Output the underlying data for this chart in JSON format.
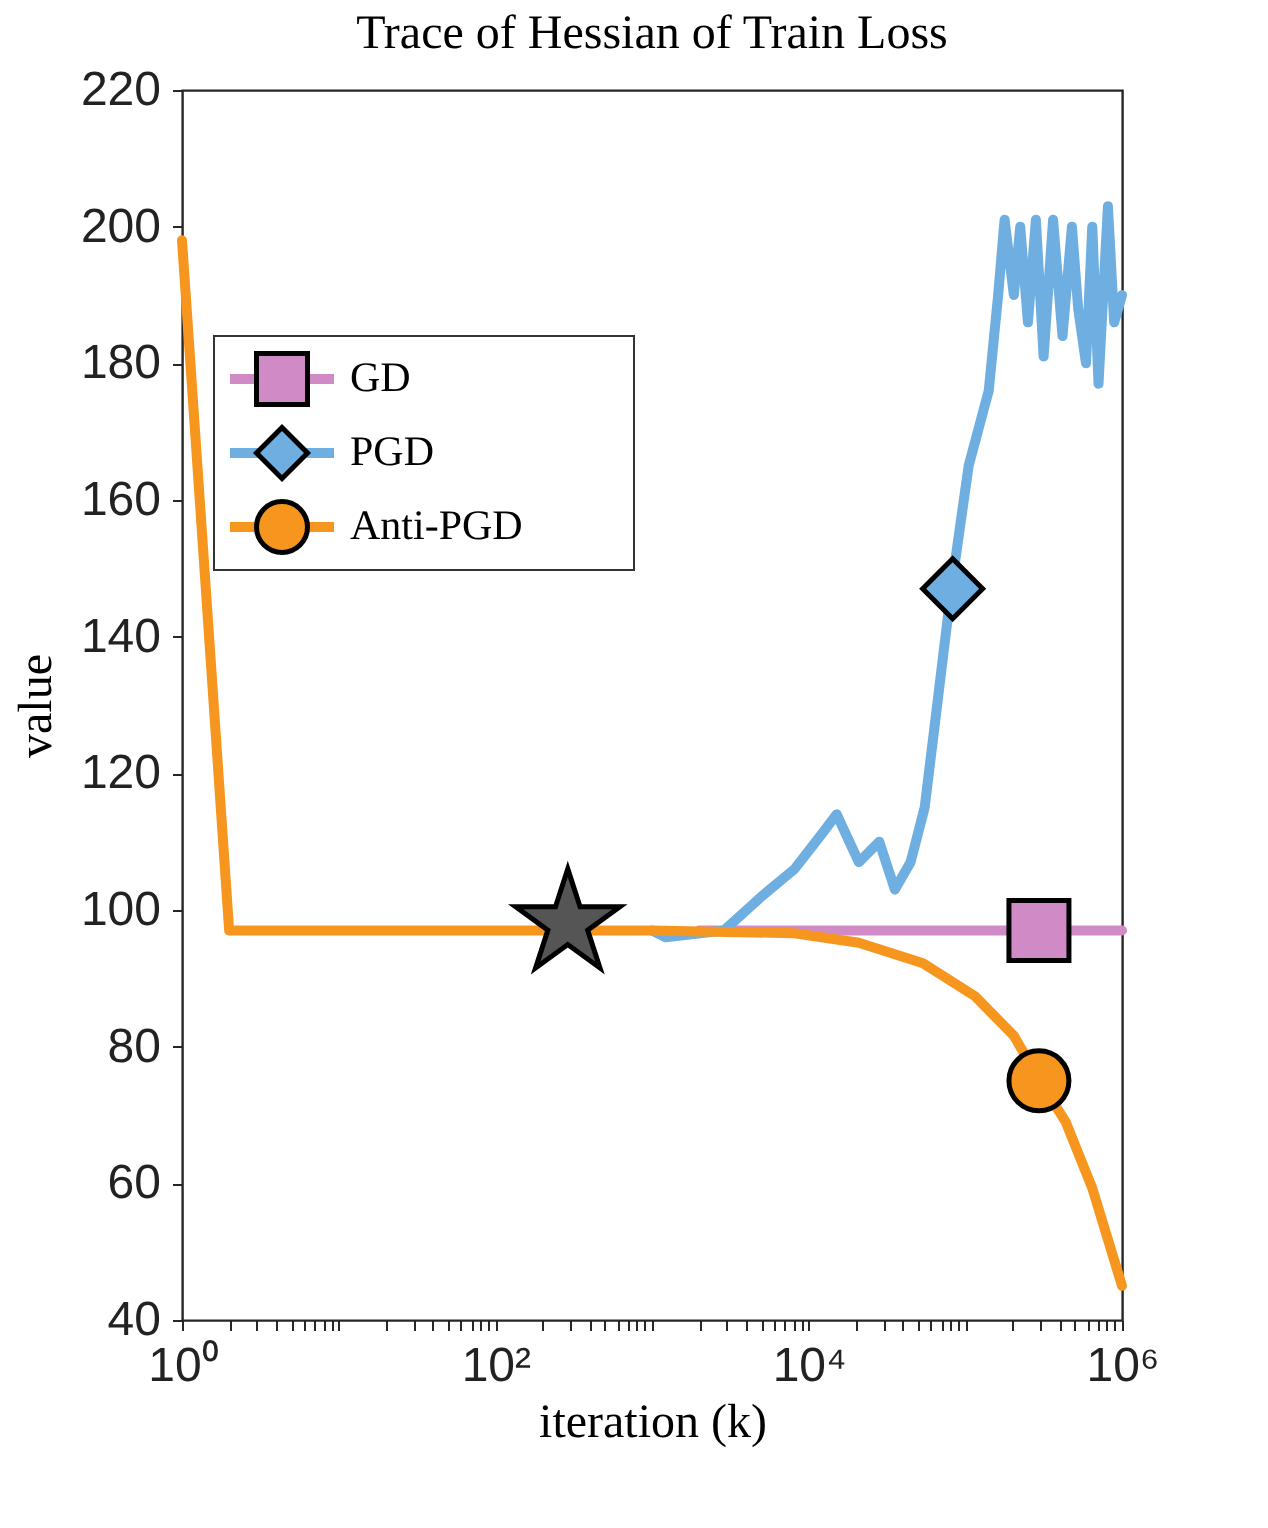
{
  "chart_data": {
    "type": "line",
    "title": "Trace of Hessian of Train Loss",
    "xlabel": "iteration (k)",
    "ylabel": "value",
    "log": "x",
    "xlim": [
      1,
      1000000
    ],
    "ylim": [
      40,
      220
    ],
    "xticks": [
      {
        "value": 1,
        "label": "10⁰"
      },
      {
        "value": 2,
        "label": null
      },
      {
        "value": 3,
        "label": null
      },
      {
        "value": 4,
        "label": null
      },
      {
        "value": 5,
        "label": null
      },
      {
        "value": 6,
        "label": null
      },
      {
        "value": 7,
        "label": null
      },
      {
        "value": 8,
        "label": null
      },
      {
        "value": 9,
        "label": null
      },
      {
        "value": 10,
        "label": null
      },
      {
        "value": 20,
        "label": null
      },
      {
        "value": 30,
        "label": null
      },
      {
        "value": 40,
        "label": null
      },
      {
        "value": 50,
        "label": null
      },
      {
        "value": 60,
        "label": null
      },
      {
        "value": 70,
        "label": null
      },
      {
        "value": 80,
        "label": null
      },
      {
        "value": 90,
        "label": null
      },
      {
        "value": 100,
        "label": "10²"
      },
      {
        "value": 200,
        "label": null
      },
      {
        "value": 300,
        "label": null
      },
      {
        "value": 400,
        "label": null
      },
      {
        "value": 500,
        "label": null
      },
      {
        "value": 600,
        "label": null
      },
      {
        "value": 700,
        "label": null
      },
      {
        "value": 800,
        "label": null
      },
      {
        "value": 900,
        "label": null
      },
      {
        "value": 1000,
        "label": null
      },
      {
        "value": 2000,
        "label": null
      },
      {
        "value": 3000,
        "label": null
      },
      {
        "value": 4000,
        "label": null
      },
      {
        "value": 5000,
        "label": null
      },
      {
        "value": 6000,
        "label": null
      },
      {
        "value": 7000,
        "label": null
      },
      {
        "value": 8000,
        "label": null
      },
      {
        "value": 9000,
        "label": null
      },
      {
        "value": 10000,
        "label": "10⁴"
      },
      {
        "value": 20000,
        "label": null
      },
      {
        "value": 30000,
        "label": null
      },
      {
        "value": 40000,
        "label": null
      },
      {
        "value": 50000,
        "label": null
      },
      {
        "value": 60000,
        "label": null
      },
      {
        "value": 70000,
        "label": null
      },
      {
        "value": 80000,
        "label": null
      },
      {
        "value": 90000,
        "label": null
      },
      {
        "value": 100000,
        "label": null
      },
      {
        "value": 200000,
        "label": null
      },
      {
        "value": 300000,
        "label": null
      },
      {
        "value": 400000,
        "label": null
      },
      {
        "value": 500000,
        "label": null
      },
      {
        "value": 600000,
        "label": null
      },
      {
        "value": 700000,
        "label": null
      },
      {
        "value": 800000,
        "label": null
      },
      {
        "value": 900000,
        "label": null
      },
      {
        "value": 1000000,
        "label": "10⁶"
      }
    ],
    "yticks": [
      40,
      60,
      80,
      100,
      120,
      140,
      160,
      180,
      200,
      220
    ],
    "grid": false,
    "legend": "left",
    "line_style": "solid",
    "series": [
      {
        "name": "GD",
        "color": "#d08bc6",
        "x": [
          2000,
          1000000
        ],
        "values": [
          97,
          97
        ]
      },
      {
        "name": "PGD",
        "color": "#6faee0",
        "x": [
          1000,
          1220,
          2880,
          5010,
          8130,
          12000,
          15100,
          20900,
          28200,
          35500,
          44700,
          55000,
          66100,
          81300,
          105000,
          141000,
          162000,
          178000,
          204000,
          224000,
          251000,
          282000,
          316000,
          363000,
          417000,
          479000,
          525000,
          589000,
          646000,
          708000,
          813000,
          891000,
          1000000
        ],
        "values": [
          97,
          96,
          97,
          102,
          106,
          111,
          114,
          107,
          110,
          103,
          107,
          115,
          130,
          147,
          165,
          176,
          190,
          201,
          190,
          200,
          186,
          201,
          181,
          201,
          184,
          200,
          188,
          180,
          200,
          177,
          203,
          186,
          190
        ]
      },
      {
        "name": "Anti-PGD",
        "color": "#f7961f",
        "x": [
          1,
          2,
          1000,
          8130,
          20900,
          53700,
          115000,
          204000,
          295000,
          437000,
          646000,
          1000000
        ],
        "values": [
          198,
          97,
          97,
          96.6,
          95.2,
          92.2,
          87.4,
          81.6,
          75.2,
          69,
          59.3,
          45
        ]
      },
      {
        "type": "scatter",
        "color": "#d08bc6",
        "marker": "square",
        "x": [
          295000
        ],
        "values": [
          97
        ]
      },
      {
        "type": "scatter",
        "color": "#6faee0",
        "marker": "diamond",
        "x": [
          83000
        ],
        "values": [
          147
        ]
      },
      {
        "type": "scatter",
        "color": "#f7961f",
        "marker": "circle",
        "x": [
          295000
        ],
        "values": [
          75
        ]
      },
      {
        "type": "scatter",
        "color": "#555555",
        "marker": "star",
        "x": [
          290
        ],
        "values": [
          98
        ]
      }
    ]
  }
}
